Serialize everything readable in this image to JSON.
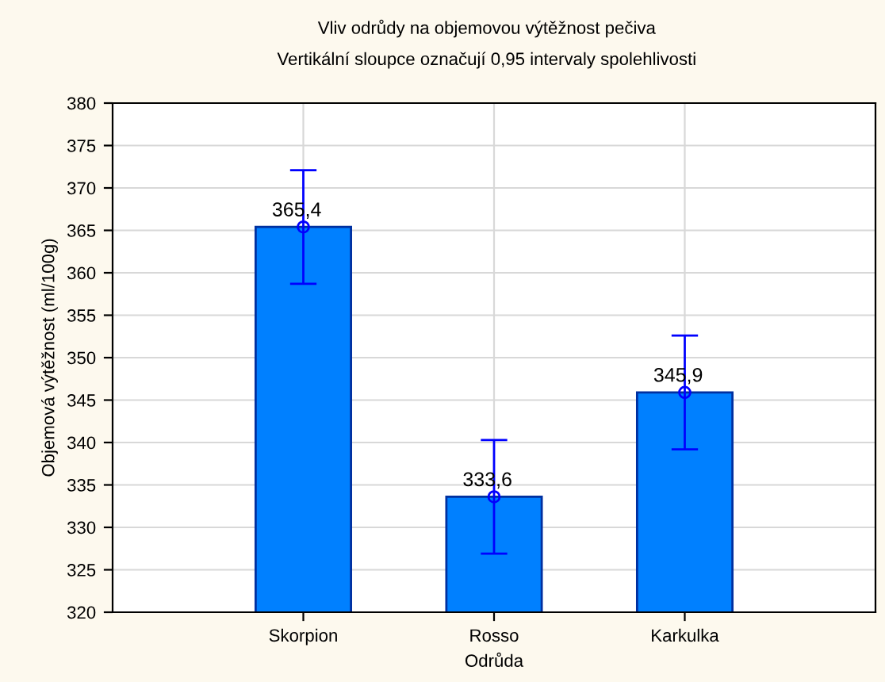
{
  "chart_data": {
    "type": "bar",
    "title": "Vliv odrůdy na objemovou výtěžnost pečiva",
    "subtitle": "Vertikální sloupce označují 0,95 intervaly spolehlivosti",
    "xlabel": "Odrůda",
    "ylabel": "Objemová výtěžnost (ml/100g)",
    "categories": [
      "Skorpion",
      "Rosso",
      "Karkulka"
    ],
    "series": [
      {
        "color": "#0080ff",
        "values": [
          365.4,
          333.6,
          345.9
        ],
        "errors": [
          6.7,
          6.7,
          6.7
        ],
        "value_labels": [
          "365,4",
          "333,6",
          "345,9"
        ]
      },
      {
        "type": "scatter",
        "color": "#0000ff",
        "x": [
          "Skorpion",
          "Rosso",
          "Karkulka"
        ],
        "values": [
          365.4,
          333.6,
          345.9
        ],
        "marker": "circle"
      }
    ],
    "ylim": [
      320,
      380
    ],
    "yticks": [
      320,
      325,
      330,
      335,
      340,
      345,
      350,
      355,
      360,
      365,
      370,
      375,
      380
    ],
    "grid": true
  }
}
